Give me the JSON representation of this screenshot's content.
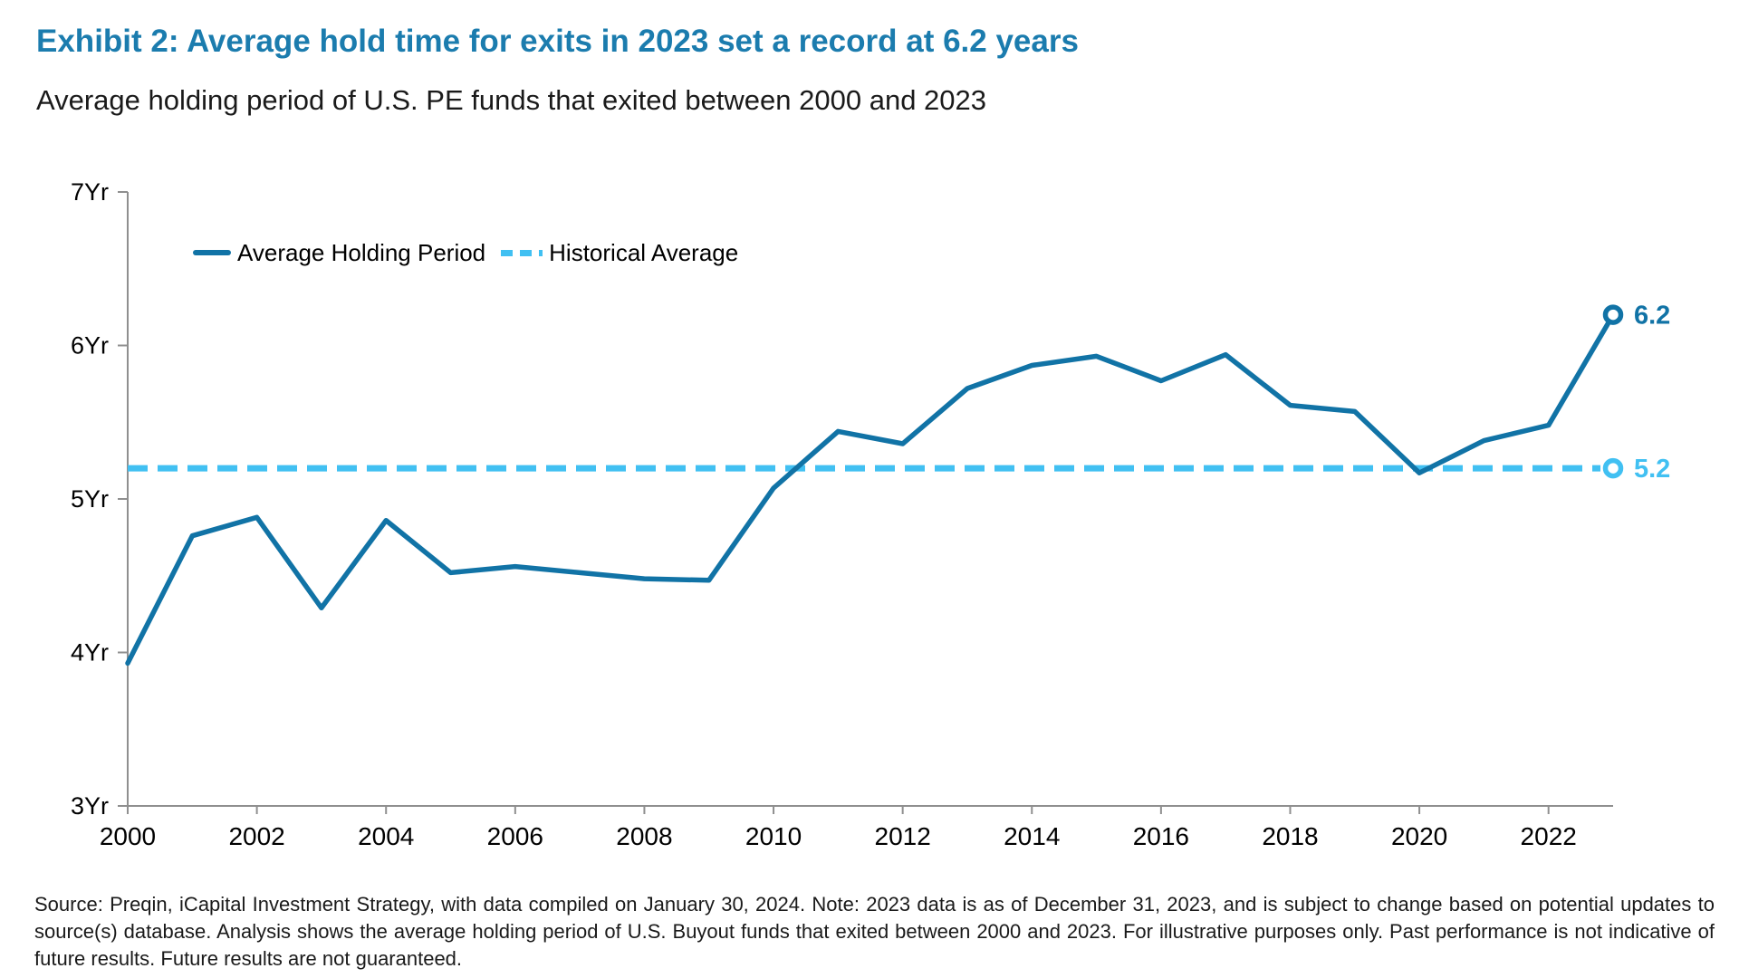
{
  "header": {
    "title": "Exhibit 2: Average hold time for exits in 2023 set a record at 6.2 years",
    "subtitle": "Average holding period of U.S. PE funds that exited between 2000 and 2023"
  },
  "chart_data": {
    "type": "line",
    "title": "Average holding period of U.S. PE funds that exited between 2000 and 2023",
    "x": [
      2000,
      2001,
      2002,
      2003,
      2004,
      2005,
      2006,
      2007,
      2008,
      2009,
      2010,
      2011,
      2012,
      2013,
      2014,
      2015,
      2016,
      2017,
      2018,
      2019,
      2020,
      2021,
      2022,
      2023
    ],
    "series": [
      {
        "name": "Average Holding Period",
        "style": "solid",
        "color": "#1173A6",
        "end_label": "6.2",
        "values": [
          3.93,
          4.76,
          4.88,
          4.29,
          4.86,
          4.52,
          4.56,
          4.52,
          4.48,
          4.47,
          5.07,
          5.44,
          5.36,
          5.72,
          5.87,
          5.93,
          5.77,
          5.94,
          5.61,
          5.57,
          5.17,
          5.38,
          5.48,
          6.2
        ]
      },
      {
        "name": "Historical Average",
        "style": "dashed",
        "color": "#41C0F2",
        "end_label": "5.2",
        "value": 5.2
      }
    ],
    "x_range": [
      2000,
      2023
    ],
    "ylim": [
      3,
      7
    ],
    "yticks": {
      "values": [
        7,
        6,
        5,
        4,
        3
      ],
      "labels": [
        "7Yr",
        "6Yr",
        "5Yr",
        "4Yr",
        "3Yr"
      ]
    },
    "xticks": [
      2000,
      2002,
      2004,
      2006,
      2008,
      2010,
      2012,
      2014,
      2016,
      2018,
      2020,
      2022
    ],
    "grid": false,
    "legend_position": "top-left-inside"
  },
  "footer": {
    "lines": [
      "Source: Preqin, iCapital Investment Strategy, with data compiled on January 30, 2024. Note: 2023 data is as of December 31, 2023, and is subject to change based on potential updates to",
      "source(s) database. Analysis shows the average holding period of U.S. Buyout funds that exited between 2000 and 2023. For illustrative purposes only. Past performance is not indicative of",
      "future results. Future results are not guaranteed."
    ]
  },
  "colors": {
    "title": "#1B7CAE",
    "line": "#1173A6",
    "dashed": "#41C0F2",
    "axis": "#8F8F8F",
    "text": "#000000"
  }
}
